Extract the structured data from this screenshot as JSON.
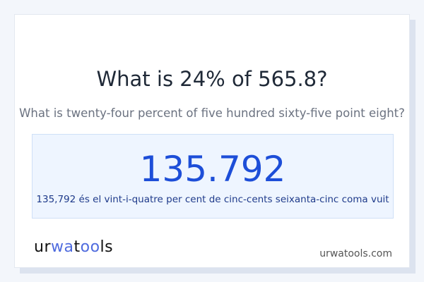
{
  "title": "What is 24% of 565.8?",
  "subtitle": "What is twenty-four percent of five hundred sixty-five point eight?",
  "result": {
    "value": "135.792",
    "words": "135,792 és el vint-i-quatre per cent de cinc-cents seixanta-cinc coma vuit"
  },
  "footer": {
    "logo": "urwatools",
    "domain": "urwatools.com"
  },
  "colors": {
    "accent": "#1d4ed8",
    "logo_accent": "#4f6bde"
  }
}
